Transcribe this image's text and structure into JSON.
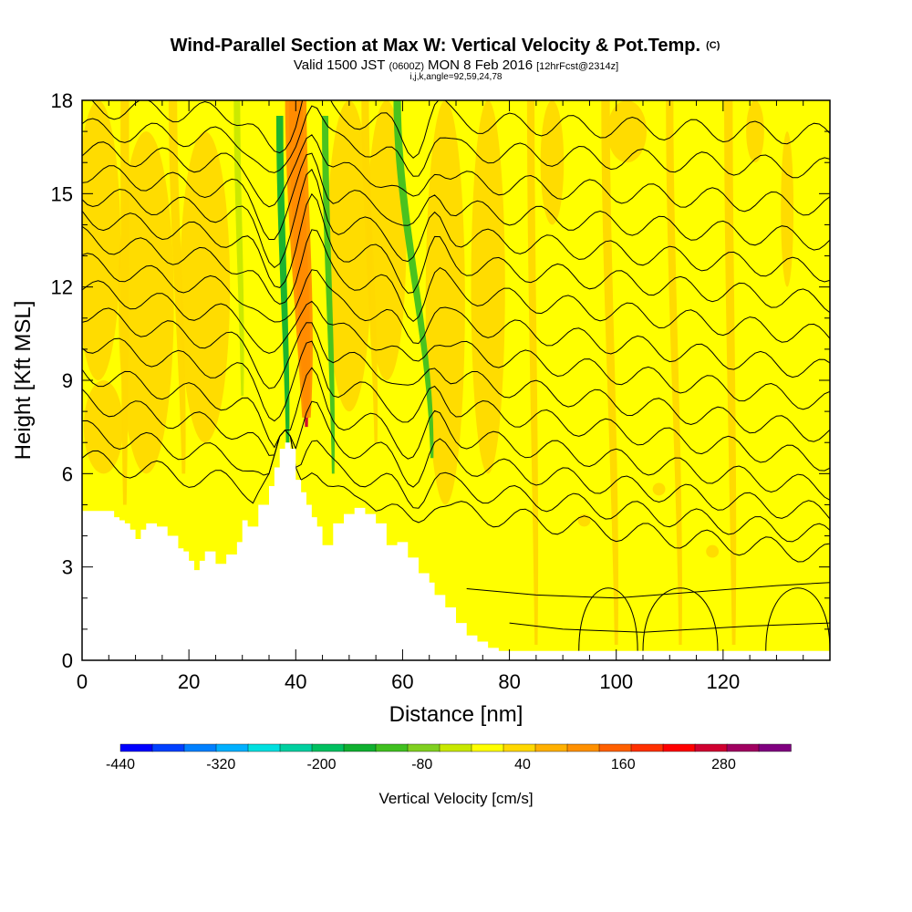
{
  "chart_data": {
    "type": "heatmap",
    "title": "Wind-Parallel Section at Max W: Vertical Velocity & Pot.Temp.",
    "title_mark": "(C)",
    "subtitle_main_a": "Valid 1500 JST",
    "subtitle_small_a": "(0600Z)",
    "subtitle_main_b": "MON 8 Feb 2016",
    "subtitle_small_b": "[12hrFcst@2314z]",
    "subtitle_line2": "i,j,k,angle=92,59,24,78",
    "xlabel": "Distance [nm]",
    "ylabel": "Height [Kft MSL]",
    "xlim": [
      0,
      140
    ],
    "ylim": [
      0,
      18
    ],
    "x_ticks": [
      "0",
      "20",
      "40",
      "60",
      "80",
      "100",
      "120"
    ],
    "x_tick_values": [
      0,
      20,
      40,
      60,
      80,
      100,
      120
    ],
    "y_ticks": [
      "0",
      "3",
      "6",
      "9",
      "12",
      "15",
      "18"
    ],
    "y_tick_values": [
      0,
      3,
      6,
      9,
      12,
      15,
      18
    ],
    "colorbar": {
      "label": "Vertical Velocity [cm/s]",
      "min": -440,
      "max": 360,
      "step": 40,
      "tick_labels": [
        "-440",
        "-320",
        "-200",
        "-80",
        "40",
        "160",
        "280"
      ],
      "tick_values": [
        -440,
        -320,
        -200,
        -80,
        40,
        160,
        280
      ],
      "colors": [
        "#0000ff",
        "#0040ff",
        "#0080ff",
        "#00b0ff",
        "#00e0e0",
        "#00d0a0",
        "#00c060",
        "#10b030",
        "#40c020",
        "#80d020",
        "#c8e800",
        "#ffff00",
        "#ffd800",
        "#ffb000",
        "#ff9000",
        "#ff6000",
        "#ff3000",
        "#ff0000",
        "#d00030",
        "#a00060",
        "#800080"
      ]
    },
    "terrain": {
      "x": [
        0,
        5,
        6,
        7,
        8,
        9,
        10,
        11,
        12,
        14,
        16,
        18,
        19,
        20,
        21,
        22,
        23,
        25,
        27,
        29,
        30,
        31,
        33,
        35,
        36,
        37,
        38,
        39,
        40,
        41,
        42,
        43,
        44,
        45,
        47,
        49,
        51,
        53,
        55,
        57,
        59,
        61,
        63,
        65,
        66,
        68,
        70,
        72,
        74,
        76,
        78,
        80,
        140
      ],
      "height": [
        4.8,
        4.8,
        4.6,
        4.5,
        4.4,
        4.2,
        3.9,
        4.2,
        4.4,
        4.3,
        4.0,
        3.6,
        3.5,
        3.2,
        2.9,
        3.2,
        3.5,
        3.1,
        3.4,
        3.8,
        4.5,
        4.3,
        5.0,
        5.6,
        6.2,
        6.8,
        7.0,
        6.8,
        5.8,
        5.4,
        5.0,
        4.6,
        4.3,
        3.7,
        4.4,
        4.7,
        4.9,
        4.7,
        4.4,
        3.7,
        3.8,
        3.3,
        2.8,
        2.5,
        2.1,
        1.7,
        1.2,
        0.8,
        0.6,
        0.4,
        0.3,
        0.3,
        0.3
      ]
    },
    "w_bands": [
      {
        "x0": 42,
        "x1": 40,
        "h0": 7.5,
        "h1": 18.2,
        "width": 1.4,
        "value": 300
      },
      {
        "x0": 42,
        "x1": 40,
        "h0": 7.8,
        "h1": 18.2,
        "width": 2.6,
        "value": 200
      },
      {
        "x0": 42,
        "x1": 40,
        "h0": 7.8,
        "h1": 18.2,
        "width": 4.0,
        "value": 120
      },
      {
        "x0": 38.5,
        "x1": 37,
        "h0": 6.5,
        "h1": 17.5,
        "width": 1.3,
        "value": -130
      },
      {
        "x0": 47,
        "x1": 45.5,
        "h0": 6.0,
        "h1": 17.5,
        "width": 1.2,
        "value": -110
      },
      {
        "x0": 65.5,
        "x1": 59,
        "h0": 6.5,
        "h1": 18,
        "width": 1.4,
        "value": -110
      },
      {
        "x0": 30,
        "x1": 29,
        "h0": 8.5,
        "h1": 18,
        "width": 1.2,
        "value": -40
      },
      {
        "x0": 19,
        "x1": 17,
        "h0": 6,
        "h1": 18,
        "width": 1.6,
        "value": 60
      },
      {
        "x0": 100,
        "x1": 98,
        "h0": 0.5,
        "h1": 18,
        "width": 1.6,
        "value": 60
      },
      {
        "x0": 122,
        "x1": 121,
        "h0": 0.5,
        "h1": 18,
        "width": 1.6,
        "value": 60
      },
      {
        "x0": 8,
        "x1": 8,
        "h0": 5,
        "h1": 18,
        "width": 1.6,
        "value": 60
      },
      {
        "x0": 55,
        "x1": 53,
        "h0": 7,
        "h1": 18,
        "width": 1.4,
        "value": 60
      },
      {
        "x0": 85,
        "x1": 84,
        "h0": 0.5,
        "h1": 18,
        "width": 1.4,
        "value": 60
      },
      {
        "x0": 112,
        "x1": 110,
        "h0": 0.5,
        "h1": 18,
        "width": 1.4,
        "value": 60
      }
    ],
    "theta_contours": {
      "h_left": [
        6.5,
        7.4,
        8.4,
        9.3,
        10.3,
        11.2,
        12.0,
        12.8,
        13.6,
        14.3,
        15.0,
        15.7,
        16.4,
        17.1,
        17.8
      ],
      "h_right": [
        3.4,
        4.0,
        4.7,
        5.5,
        6.4,
        7.3,
        8.3,
        9.3,
        10.4,
        11.5,
        12.5,
        13.5,
        14.6,
        15.8,
        16.9
      ],
      "low_level": [
        {
          "x": [
            72,
            85,
            100,
            115,
            130,
            140
          ],
          "h": [
            2.3,
            2.1,
            2.0,
            2.2,
            2.4,
            2.5
          ]
        },
        {
          "x": [
            80,
            90,
            105,
            125,
            140
          ],
          "h": [
            1.2,
            1.0,
            0.9,
            1.1,
            1.2
          ]
        }
      ]
    }
  }
}
